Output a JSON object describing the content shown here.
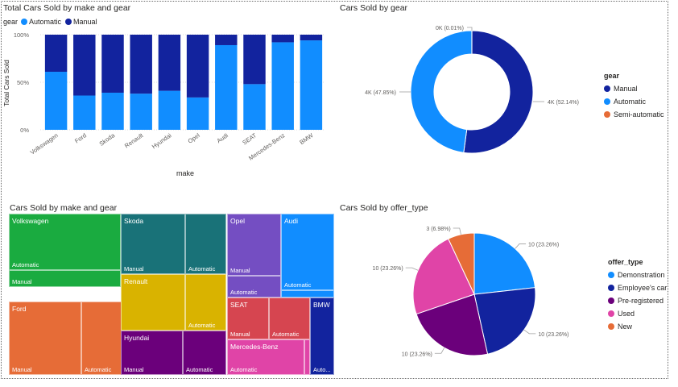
{
  "colors": {
    "manual": "#12239E",
    "automatic": "#118DFF",
    "semi_automatic": "#E66C37",
    "demonstration": "#118DFF",
    "employees_car": "#12239E",
    "pre_registered": "#6B007B",
    "used": "#E044A7",
    "new": "#E66C37",
    "treemap": {
      "Volkswagen": "#1AAB40",
      "Ford": "#E66C37",
      "Skoda": "#197278",
      "Renault": "#D9B300",
      "Hyundai": "#6B007B",
      "Opel": "#744EC2",
      "Audi": "#118DFF",
      "SEAT": "#D64550",
      "Mercedes-Benz": "#E044A7",
      "BMW": "#12239E"
    }
  },
  "bar_visual": {
    "title": "Total Cars Sold by make and gear",
    "legend_title": "gear",
    "legend_items": [
      "Automatic",
      "Manual"
    ]
  },
  "donut_visual": {
    "title": "Cars Sold by gear",
    "legend_title": "gear",
    "legend_items": [
      "Manual",
      "Automatic",
      "Semi-automatic"
    ]
  },
  "treemap_visual": {
    "title": "Cars Sold by make and gear",
    "cells": [
      {
        "make": "Volkswagen",
        "gear": "Automatic",
        "name_label": "Volkswagen",
        "gear_label": "Automatic"
      },
      {
        "make": "Volkswagen",
        "gear": "Manual",
        "name_label": "",
        "gear_label": "Manual"
      },
      {
        "make": "Ford",
        "gear": "Manual",
        "name_label": "Ford",
        "gear_label": "Manual"
      },
      {
        "make": "Ford",
        "gear": "Automatic",
        "name_label": "",
        "gear_label": "Automatic"
      },
      {
        "make": "Skoda",
        "gear": "Manual",
        "name_label": "Skoda",
        "gear_label": "Manual"
      },
      {
        "make": "Skoda",
        "gear": "Automatic",
        "name_label": "",
        "gear_label": "Automatic"
      },
      {
        "make": "Renault",
        "gear": "Manual",
        "name_label": "Renault",
        "gear_label": ""
      },
      {
        "make": "Renault",
        "gear": "Automatic",
        "name_label": "",
        "gear_label": "Automatic"
      },
      {
        "make": "Hyundai",
        "gear": "Manual",
        "name_label": "Hyundai",
        "gear_label": "Manual"
      },
      {
        "make": "Hyundai",
        "gear": "Automatic",
        "name_label": "",
        "gear_label": "Automatic"
      },
      {
        "make": "Opel",
        "gear": "Manual",
        "name_label": "Opel",
        "gear_label": "Manual"
      },
      {
        "make": "Opel",
        "gear": "Automatic",
        "name_label": "",
        "gear_label": "Automatic"
      },
      {
        "make": "Audi",
        "gear": "Automatic",
        "name_label": "Audi",
        "gear_label": "Automatic"
      },
      {
        "make": "Audi",
        "gear": "Manual",
        "name_label": "",
        "gear_label": ""
      },
      {
        "make": "SEAT",
        "gear": "Manual",
        "name_label": "SEAT",
        "gear_label": "Manual"
      },
      {
        "make": "SEAT",
        "gear": "Automatic",
        "name_label": "",
        "gear_label": "Automatic"
      },
      {
        "make": "Mercedes-Benz",
        "gear": "Automatic",
        "name_label": "Mercedes-Benz",
        "gear_label": "Automatic"
      },
      {
        "make": "Mercedes-Benz",
        "gear": "Manual",
        "name_label": "",
        "gear_label": ""
      },
      {
        "make": "BMW",
        "gear": "Automatic",
        "name_label": "BMW",
        "gear_label": "Auto..."
      }
    ]
  },
  "pie_visual": {
    "title": "Cars Sold by offer_type",
    "legend_title": "offer_type",
    "legend_items": [
      "Demonstration",
      "Employee's car",
      "Pre-registered",
      "Used",
      "New"
    ]
  },
  "chart_data": [
    {
      "type": "bar",
      "subtype": "100% stacked column",
      "title": "Total Cars Sold by make and gear",
      "xlabel": "make",
      "ylabel": "Total Cars Sold",
      "categories": [
        "Volkswagen",
        "Ford",
        "Skoda",
        "Renault",
        "Hyundai",
        "Opel",
        "Audi",
        "SEAT",
        "Mercedes-Benz",
        "BMW"
      ],
      "series": [
        {
          "name": "Automatic",
          "values": [
            61,
            36,
            39,
            38,
            41,
            34,
            89,
            48,
            92,
            94
          ]
        },
        {
          "name": "Manual",
          "values": [
            39,
            64,
            61,
            62,
            59,
            66,
            11,
            52,
            8,
            6
          ]
        }
      ],
      "yticks": [
        "0%",
        "50%",
        "100%"
      ],
      "ylim": [
        0,
        100
      ],
      "grid": true,
      "legend_position": "top-left"
    },
    {
      "type": "pie",
      "subtype": "donut",
      "title": "Cars Sold by gear",
      "slices": [
        {
          "name": "Manual",
          "percent": 52.14,
          "label": "4K (52.14%)"
        },
        {
          "name": "Automatic",
          "percent": 47.85,
          "label": "4K (47.85%)"
        },
        {
          "name": "Semi-automatic",
          "percent": 0.01,
          "label": "0K (0.01%)"
        }
      ],
      "legend_position": "right"
    },
    {
      "type": "pie",
      "title": "Cars Sold by offer_type",
      "slices": [
        {
          "name": "Demonstration",
          "value": 10,
          "percent": 23.26,
          "label": "10 (23.26%)"
        },
        {
          "name": "Employee's car",
          "value": 10,
          "percent": 23.26,
          "label": "10 (23.26%)"
        },
        {
          "name": "Pre-registered",
          "value": 10,
          "percent": 23.26,
          "label": "10 (23.26%)"
        },
        {
          "name": "Used",
          "value": 10,
          "percent": 23.26,
          "label": "10 (23.26%)"
        },
        {
          "name": "New",
          "value": 3,
          "percent": 6.98,
          "label": "3 (6.98%)"
        }
      ],
      "legend_position": "right"
    }
  ]
}
